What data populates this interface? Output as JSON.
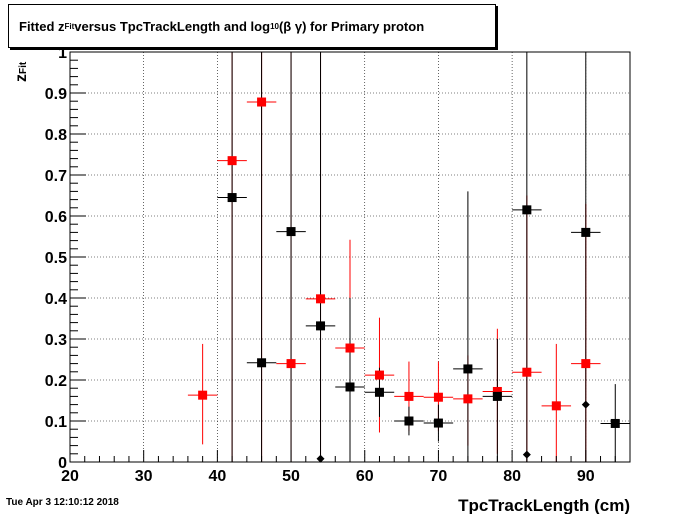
{
  "title": {
    "part1": "Fitted  z",
    "sub1": "Fit",
    "part2": "  versus TpcTrackLength and log",
    "sub2": "10",
    "part3": " (β γ) for Primary proton"
  },
  "timestamp": "Tue Apr  3 12:10:12 2018",
  "chart_data": {
    "type": "scatter",
    "title": "Fitted  z_Fit  versus TpcTrackLength and log_10 (β γ) for Primary proton",
    "xlabel": "TpcTrackLength (cm)",
    "ylabel": "z_Fit",
    "xlim": [
      20,
      96
    ],
    "ylim": [
      0,
      1
    ],
    "x_ticks": [
      "20",
      "30",
      "40",
      "50",
      "60",
      "70",
      "80",
      "90"
    ],
    "y_ticks": [
      "0",
      "0.1",
      "0.2",
      "0.3",
      "0.4",
      "0.5",
      "0.6",
      "0.7",
      "0.8",
      "0.9",
      "1"
    ],
    "grid": true,
    "series": [
      {
        "color": "#ff0000",
        "marker": "square",
        "points": [
          {
            "x": 38,
            "y": 0.163,
            "ylo": 0.043,
            "yhi": 0.288,
            "xerr": 2
          },
          {
            "x": 42,
            "y": 0.735,
            "ylo": 0.0,
            "yhi": 1.0,
            "xerr": 2
          },
          {
            "x": 46,
            "y": 0.878,
            "ylo": 0.0,
            "yhi": 1.0,
            "xerr": 2
          },
          {
            "x": 50,
            "y": 0.24,
            "ylo": 0.0,
            "yhi": 1.0,
            "xerr": 2
          },
          {
            "x": 54,
            "y": 0.398,
            "ylo": 0.0,
            "yhi": 1.0,
            "xerr": 2
          },
          {
            "x": 58,
            "y": 0.278,
            "ylo": 0.0,
            "yhi": 0.542,
            "xerr": 2
          },
          {
            "x": 62,
            "y": 0.212,
            "ylo": 0.072,
            "yhi": 0.352,
            "xerr": 2
          },
          {
            "x": 66,
            "y": 0.16,
            "ylo": 0.075,
            "yhi": 0.245,
            "xerr": 2
          },
          {
            "x": 70,
            "y": 0.158,
            "ylo": 0.075,
            "yhi": 0.245,
            "xerr": 2
          },
          {
            "x": 74,
            "y": 0.154,
            "ylo": 0.04,
            "yhi": 0.26,
            "xerr": 2
          },
          {
            "x": 78,
            "y": 0.172,
            "ylo": 0.02,
            "yhi": 0.325,
            "xerr": 2
          },
          {
            "x": 82,
            "y": 0.219,
            "ylo": 0.0,
            "yhi": 0.65,
            "xerr": 2
          },
          {
            "x": 86,
            "y": 0.137,
            "ylo": 0.0,
            "yhi": 0.288,
            "xerr": 2
          },
          {
            "x": 90,
            "y": 0.24,
            "ylo": 0.0,
            "yhi": 0.63,
            "xerr": 2
          }
        ]
      },
      {
        "color": "#000000",
        "marker": "square",
        "points": [
          {
            "x": 42,
            "y": 0.645,
            "ylo": 0.0,
            "yhi": 1.0,
            "xerr": 2
          },
          {
            "x": 46,
            "y": 0.242,
            "ylo": 0.0,
            "yhi": 1.0,
            "xerr": 2
          },
          {
            "x": 50,
            "y": 0.562,
            "ylo": 0.0,
            "yhi": 1.0,
            "xerr": 2
          },
          {
            "x": 54,
            "y": 0.332,
            "ylo": 0.0,
            "yhi": 1.0,
            "xerr": 2
          },
          {
            "x": 58,
            "y": 0.183,
            "ylo": 0.0,
            "yhi": 0.4,
            "xerr": 2
          },
          {
            "x": 62,
            "y": 0.17,
            "ylo": 0.11,
            "yhi": 0.23,
            "xerr": 2
          },
          {
            "x": 66,
            "y": 0.1,
            "ylo": 0.065,
            "yhi": 0.135,
            "xerr": 2
          },
          {
            "x": 70,
            "y": 0.095,
            "ylo": 0.05,
            "yhi": 0.14,
            "xerr": 2
          },
          {
            "x": 74,
            "y": 0.227,
            "ylo": 0.0,
            "yhi": 0.66,
            "xerr": 2
          },
          {
            "x": 78,
            "y": 0.16,
            "ylo": 0.0,
            "yhi": 0.3,
            "xerr": 2
          },
          {
            "x": 82,
            "y": 0.615,
            "ylo": 0.0,
            "yhi": 1.0,
            "xerr": 2
          },
          {
            "x": 90,
            "y": 0.56,
            "ylo": 0.0,
            "yhi": 1.0,
            "xerr": 2
          },
          {
            "x": 94,
            "y": 0.094,
            "ylo": 0.0,
            "yhi": 0.19,
            "xerr": 2
          }
        ]
      },
      {
        "color": "#000000",
        "marker": "diamond",
        "points": [
          {
            "x": 54,
            "y": 0.008
          },
          {
            "x": 82,
            "y": 0.018
          },
          {
            "x": 90,
            "y": 0.14
          }
        ]
      }
    ]
  }
}
